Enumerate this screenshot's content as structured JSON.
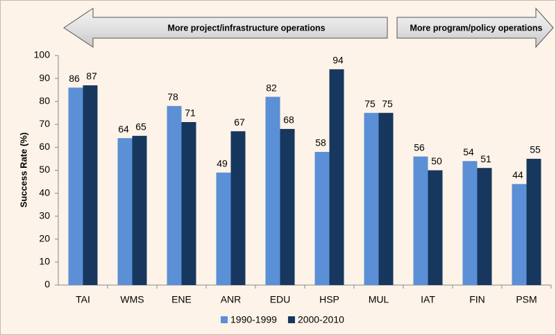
{
  "chart_data": {
    "type": "bar",
    "y_label": "Success Rate (%)",
    "annotations": [
      "More project/infrastructure operations",
      "More program/policy operations"
    ],
    "categories": [
      "TAI",
      "WMS",
      "ENE",
      "ANR",
      "EDU",
      "HSP",
      "MUL",
      "IAT",
      "FIN",
      "PSM"
    ],
    "series": [
      {
        "name": "1990-1999",
        "color": "#5b8fd6",
        "values": [
          86,
          64,
          78,
          49,
          82,
          58,
          75,
          56,
          54,
          44
        ]
      },
      {
        "name": "2000-2010",
        "color": "#17375e",
        "values": [
          87,
          65,
          71,
          67,
          68,
          94,
          75,
          50,
          51,
          55
        ]
      }
    ],
    "ylim": [
      0,
      100
    ],
    "yticks": [
      0,
      10,
      20,
      30,
      40,
      50,
      60,
      70,
      80,
      90,
      100
    ],
    "grid": false
  }
}
